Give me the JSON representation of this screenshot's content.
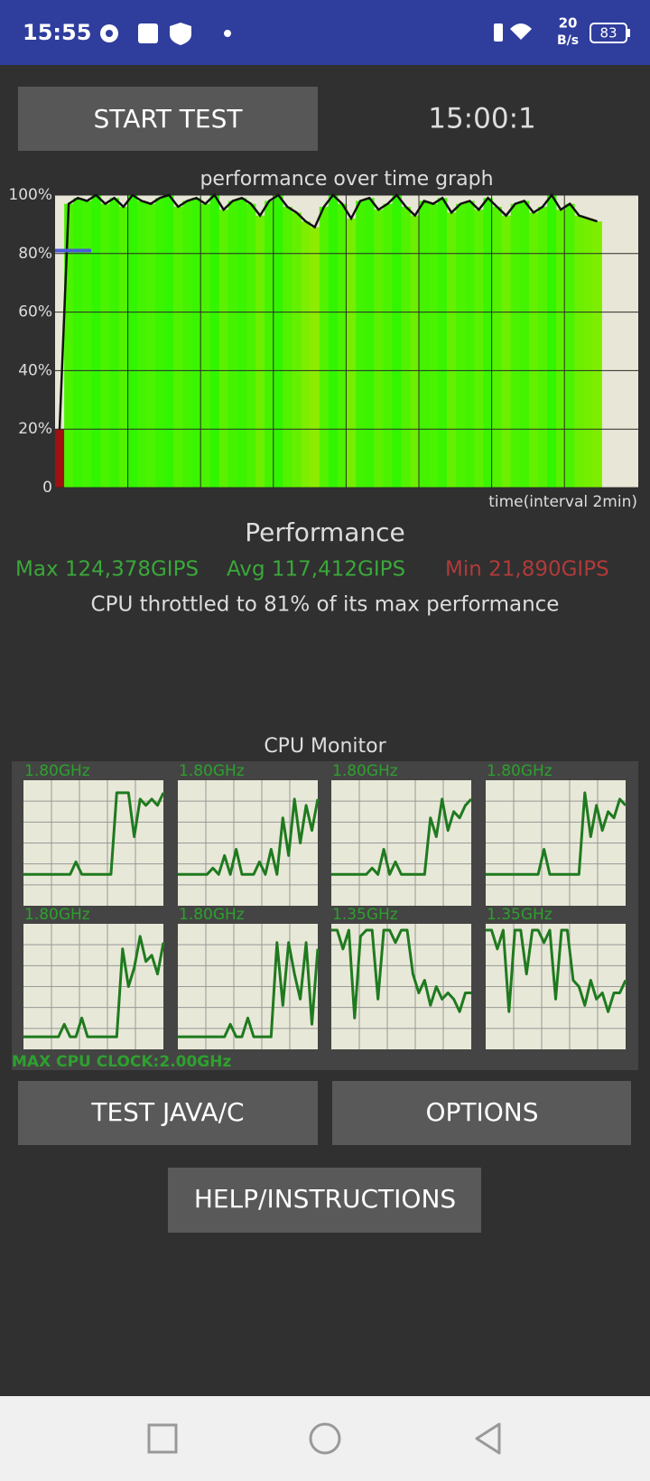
{
  "status_bar": {
    "time": "15:55",
    "net_speed": "20",
    "net_unit": "B/s",
    "battery": "83"
  },
  "header": {
    "start_button": "START TEST",
    "timer": "15:00:1"
  },
  "performance_graph": {
    "type": "line",
    "title": "performance over time graph",
    "x_label": "time(interval 2min)",
    "xlim": [
      0,
      64
    ],
    "ylim": [
      0,
      100
    ],
    "yticks": [
      {
        "value": 0,
        "label": "0"
      },
      {
        "value": 20,
        "label": "20%"
      },
      {
        "value": 40,
        "label": "40%"
      },
      {
        "value": 60,
        "label": "60%"
      },
      {
        "value": 80,
        "label": "80%"
      },
      {
        "value": 100,
        "label": "100%"
      }
    ],
    "grid": true,
    "line_color": "#111111",
    "throttle_marker": 81,
    "marker_color": "#4a5ad8",
    "values": [
      20,
      97,
      99,
      98,
      100,
      97,
      99,
      96,
      100,
      98,
      97,
      99,
      100,
      96,
      98,
      99,
      97,
      100,
      95,
      98,
      99,
      97,
      93,
      98,
      100,
      96,
      94,
      91,
      89,
      96,
      100,
      97,
      92,
      98,
      99,
      95,
      97,
      100,
      96,
      93,
      98,
      97,
      99,
      94,
      97,
      98,
      95,
      99,
      96,
      93,
      97,
      98,
      94,
      96,
      100,
      95,
      97,
      93,
      92,
      91
    ]
  },
  "summary": {
    "heading": "Performance",
    "max": "Max 124,378GIPS",
    "avg": "Avg 117,412GIPS",
    "min": "Min 21,890GIPS",
    "throttle_text": "CPU throttled to 81% of its max performance"
  },
  "cpu_monitor": {
    "title": "CPU Monitor",
    "ylim": [
      0,
      100
    ],
    "line_color": "#1f7a1f",
    "cores": [
      {
        "label": "1.80GHz",
        "values": [
          25,
          25,
          25,
          25,
          25,
          25,
          25,
          25,
          25,
          35,
          25,
          25,
          25,
          25,
          25,
          25,
          90,
          90,
          90,
          55,
          85,
          80,
          85,
          80,
          90
        ]
      },
      {
        "label": "1.80GHz",
        "values": [
          25,
          25,
          25,
          25,
          25,
          25,
          30,
          25,
          40,
          25,
          45,
          25,
          25,
          25,
          35,
          25,
          45,
          25,
          70,
          40,
          85,
          50,
          80,
          60,
          85
        ]
      },
      {
        "label": "1.80GHz",
        "values": [
          25,
          25,
          25,
          25,
          25,
          25,
          25,
          30,
          25,
          45,
          25,
          35,
          25,
          25,
          25,
          25,
          25,
          70,
          55,
          85,
          60,
          75,
          70,
          80,
          85
        ]
      },
      {
        "label": "1.80GHz",
        "values": [
          25,
          25,
          25,
          25,
          25,
          25,
          25,
          25,
          25,
          25,
          45,
          25,
          25,
          25,
          25,
          25,
          25,
          90,
          55,
          80,
          60,
          75,
          70,
          85,
          80
        ]
      },
      {
        "label": "1.80GHz",
        "values": [
          10,
          10,
          10,
          10,
          10,
          10,
          10,
          20,
          10,
          10,
          25,
          10,
          10,
          10,
          10,
          10,
          10,
          80,
          50,
          65,
          90,
          70,
          75,
          60,
          85
        ]
      },
      {
        "label": "1.80GHz",
        "values": [
          10,
          10,
          10,
          10,
          10,
          10,
          10,
          10,
          10,
          20,
          10,
          10,
          25,
          10,
          10,
          10,
          10,
          85,
          35,
          85,
          60,
          40,
          85,
          20,
          80
        ]
      },
      {
        "label": "1.35GHz",
        "values": [
          95,
          95,
          80,
          95,
          25,
          90,
          95,
          95,
          40,
          95,
          95,
          85,
          95,
          95,
          60,
          45,
          55,
          35,
          50,
          40,
          45,
          40,
          30,
          45,
          45
        ]
      },
      {
        "label": "1.35GHz",
        "values": [
          95,
          95,
          80,
          95,
          30,
          95,
          95,
          60,
          95,
          95,
          85,
          95,
          40,
          95,
          95,
          55,
          50,
          35,
          55,
          40,
          45,
          30,
          45,
          45,
          55
        ]
      }
    ],
    "max_clock": "MAX CPU CLOCK:2.00GHz"
  },
  "buttons": {
    "test": "TEST JAVA/C",
    "options": "OPTIONS",
    "help": "HELP/INSTRUCTIONS"
  }
}
